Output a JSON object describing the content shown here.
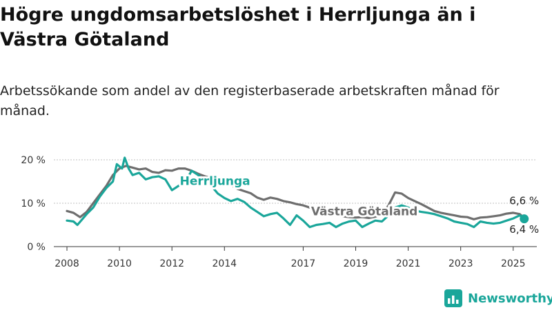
{
  "header": {
    "title": "Högre ungdomsarbetslöshet i Herrljunga än i Västra Götaland",
    "subtitle": "Arbetssökande som andel av den registerbaserade arbetskraften månad för månad."
  },
  "brand": {
    "name": "Newsworthy",
    "icon": "bar-chart-logo-icon",
    "color": "#1aa69a"
  },
  "chart_data": {
    "type": "line",
    "ylim": [
      0,
      20
    ],
    "xlim": [
      2007.5,
      2025.9
    ],
    "y_ticks": [
      0,
      10,
      20
    ],
    "y_tick_labels": [
      "0 %",
      "10 %",
      "20 %"
    ],
    "x_ticks": [
      2008,
      2010,
      2012,
      2014,
      2017,
      2019,
      2021,
      2023,
      2025
    ],
    "x_tick_labels": [
      "2008",
      "2010",
      "2012",
      "2014",
      "2017",
      "2019",
      "2021",
      "2023",
      "2025"
    ],
    "grid": true,
    "legend": "direct labels",
    "series": [
      {
        "name": "Västra Götaland",
        "color": "#6e6e6e",
        "points": [
          [
            2008.0,
            8.2
          ],
          [
            2008.25,
            7.8
          ],
          [
            2008.5,
            6.8
          ],
          [
            2008.75,
            8.0
          ],
          [
            2009.0,
            10.0
          ],
          [
            2009.25,
            12.0
          ],
          [
            2009.5,
            14.0
          ],
          [
            2009.75,
            16.5
          ],
          [
            2010.0,
            18.0
          ],
          [
            2010.25,
            18.6
          ],
          [
            2010.5,
            18.2
          ],
          [
            2010.75,
            17.8
          ],
          [
            2011.0,
            18.0
          ],
          [
            2011.25,
            17.2
          ],
          [
            2011.5,
            17.0
          ],
          [
            2011.75,
            17.6
          ],
          [
            2012.0,
            17.5
          ],
          [
            2012.25,
            18.0
          ],
          [
            2012.5,
            18.0
          ],
          [
            2012.75,
            17.5
          ],
          [
            2013.0,
            16.8
          ],
          [
            2013.25,
            16.2
          ],
          [
            2013.5,
            15.8
          ],
          [
            2013.75,
            15.3
          ],
          [
            2014.0,
            15.0
          ],
          [
            2014.25,
            14.2
          ],
          [
            2014.5,
            13.3
          ],
          [
            2014.75,
            12.8
          ],
          [
            2015.0,
            12.3
          ],
          [
            2015.25,
            11.3
          ],
          [
            2015.5,
            10.8
          ],
          [
            2015.75,
            11.3
          ],
          [
            2016.0,
            11.0
          ],
          [
            2016.25,
            10.5
          ],
          [
            2016.5,
            10.2
          ],
          [
            2016.75,
            9.8
          ],
          [
            2017.0,
            9.5
          ],
          [
            2017.25,
            9.0
          ],
          [
            2017.5,
            8.5
          ],
          [
            2017.75,
            8.0
          ],
          [
            2018.0,
            7.6
          ],
          [
            2018.25,
            7.2
          ],
          [
            2018.5,
            7.0
          ],
          [
            2018.75,
            6.8
          ],
          [
            2019.0,
            6.7
          ],
          [
            2019.25,
            6.8
          ],
          [
            2019.5,
            6.6
          ],
          [
            2019.75,
            6.9
          ],
          [
            2020.0,
            7.5
          ],
          [
            2020.25,
            9.5
          ],
          [
            2020.5,
            12.5
          ],
          [
            2020.75,
            12.2
          ],
          [
            2021.0,
            11.2
          ],
          [
            2021.25,
            10.5
          ],
          [
            2021.5,
            9.8
          ],
          [
            2021.75,
            9.0
          ],
          [
            2022.0,
            8.2
          ],
          [
            2022.25,
            7.8
          ],
          [
            2022.5,
            7.5
          ],
          [
            2022.75,
            7.2
          ],
          [
            2023.0,
            6.9
          ],
          [
            2023.25,
            6.8
          ],
          [
            2023.5,
            6.3
          ],
          [
            2023.75,
            6.7
          ],
          [
            2024.0,
            6.8
          ],
          [
            2024.25,
            7.0
          ],
          [
            2024.5,
            7.2
          ],
          [
            2024.75,
            7.6
          ],
          [
            2025.0,
            7.8
          ],
          [
            2025.25,
            7.5
          ],
          [
            2025.42,
            6.6
          ]
        ]
      },
      {
        "name": "Herrljunga",
        "color": "#1aa69a",
        "points": [
          [
            2008.0,
            6.0
          ],
          [
            2008.25,
            5.8
          ],
          [
            2008.4,
            5.0
          ],
          [
            2008.75,
            7.5
          ],
          [
            2009.0,
            9.0
          ],
          [
            2009.25,
            11.5
          ],
          [
            2009.5,
            13.5
          ],
          [
            2009.75,
            15.0
          ],
          [
            2009.9,
            19.0
          ],
          [
            2010.1,
            18.0
          ],
          [
            2010.2,
            20.5
          ],
          [
            2010.35,
            18.0
          ],
          [
            2010.5,
            16.5
          ],
          [
            2010.75,
            17.0
          ],
          [
            2011.0,
            15.5
          ],
          [
            2011.25,
            16.0
          ],
          [
            2011.5,
            16.2
          ],
          [
            2011.75,
            15.5
          ],
          [
            2012.0,
            13.0
          ],
          [
            2012.25,
            14.0
          ],
          [
            2012.5,
            14.8
          ],
          [
            2012.75,
            17.5
          ],
          [
            2013.0,
            16.5
          ],
          [
            2013.25,
            15.0
          ],
          [
            2013.5,
            14.0
          ],
          [
            2013.75,
            12.2
          ],
          [
            2014.0,
            11.2
          ],
          [
            2014.25,
            10.5
          ],
          [
            2014.5,
            11.0
          ],
          [
            2014.75,
            10.3
          ],
          [
            2015.0,
            9.0
          ],
          [
            2015.25,
            8.0
          ],
          [
            2015.5,
            7.0
          ],
          [
            2015.75,
            7.5
          ],
          [
            2016.0,
            7.8
          ],
          [
            2016.25,
            6.5
          ],
          [
            2016.5,
            5.0
          ],
          [
            2016.75,
            7.2
          ],
          [
            2017.0,
            6.0
          ],
          [
            2017.25,
            4.5
          ],
          [
            2017.5,
            5.0
          ],
          [
            2017.75,
            5.2
          ],
          [
            2018.0,
            5.5
          ],
          [
            2018.25,
            4.5
          ],
          [
            2018.5,
            5.3
          ],
          [
            2018.75,
            5.8
          ],
          [
            2019.0,
            6.0
          ],
          [
            2019.25,
            4.5
          ],
          [
            2019.5,
            5.3
          ],
          [
            2019.75,
            6.0
          ],
          [
            2020.0,
            5.8
          ],
          [
            2020.25,
            7.2
          ],
          [
            2020.5,
            9.0
          ],
          [
            2020.75,
            9.5
          ],
          [
            2021.0,
            9.0
          ],
          [
            2021.25,
            8.3
          ],
          [
            2021.5,
            8.0
          ],
          [
            2021.75,
            7.8
          ],
          [
            2022.0,
            7.5
          ],
          [
            2022.25,
            7.0
          ],
          [
            2022.5,
            6.5
          ],
          [
            2022.75,
            5.8
          ],
          [
            2023.0,
            5.5
          ],
          [
            2023.25,
            5.2
          ],
          [
            2023.5,
            4.5
          ],
          [
            2023.75,
            5.8
          ],
          [
            2024.0,
            5.5
          ],
          [
            2024.25,
            5.3
          ],
          [
            2024.5,
            5.5
          ],
          [
            2024.75,
            6.0
          ],
          [
            2025.0,
            6.5
          ],
          [
            2025.25,
            7.2
          ],
          [
            2025.42,
            6.4
          ]
        ]
      }
    ],
    "labels": [
      {
        "text": "Herrljunga",
        "series": "Herrljunga",
        "at": [
          2012.3,
          14.2
        ]
      },
      {
        "text": "Västra Götaland",
        "series": "Västra Götaland",
        "at": [
          2017.3,
          7.2
        ]
      },
      {
        "text": "6,6 %",
        "series": "Västra Götaland",
        "at": [
          2025.42,
          9.8
        ]
      },
      {
        "text": "6,4 %",
        "series": "Herrljunga",
        "at": [
          2025.42,
          3.2
        ]
      }
    ]
  }
}
